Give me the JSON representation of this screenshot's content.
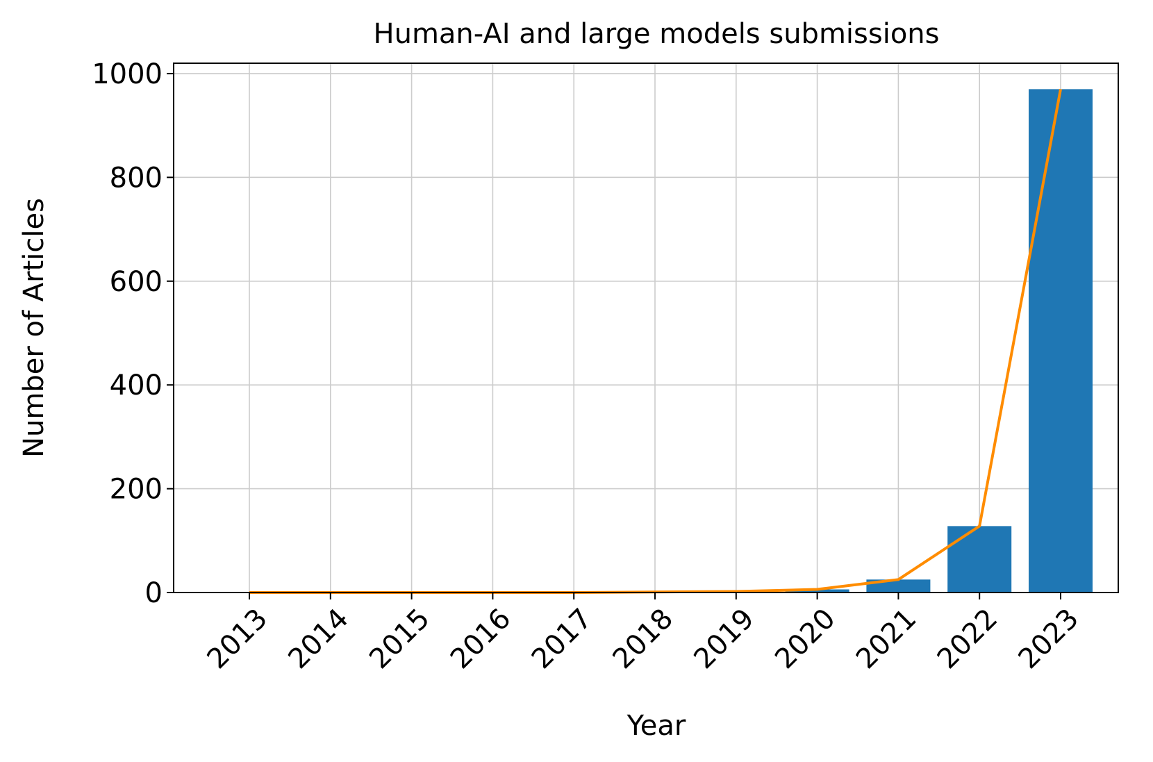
{
  "chart_data": {
    "type": "bar",
    "title": "Human-AI and large models submissions",
    "xlabel": "Year",
    "ylabel": "Number of Articles",
    "categories": [
      "2013",
      "2014",
      "2015",
      "2016",
      "2017",
      "2018",
      "2019",
      "2020",
      "2021",
      "2022",
      "2023"
    ],
    "series": [
      {
        "type": "bar",
        "color": "#1f77b4",
        "values": [
          0,
          0,
          0,
          0,
          0,
          1,
          2,
          6,
          25,
          128,
          970
        ]
      },
      {
        "type": "line",
        "color": "#ff8c00",
        "values": [
          0,
          0,
          0,
          0,
          0,
          1,
          2,
          6,
          25,
          128,
          970
        ]
      }
    ],
    "ylim": [
      0,
      1020
    ],
    "yticks": [
      0,
      200,
      400,
      600,
      800,
      1000
    ],
    "grid": true,
    "legend": "none"
  }
}
